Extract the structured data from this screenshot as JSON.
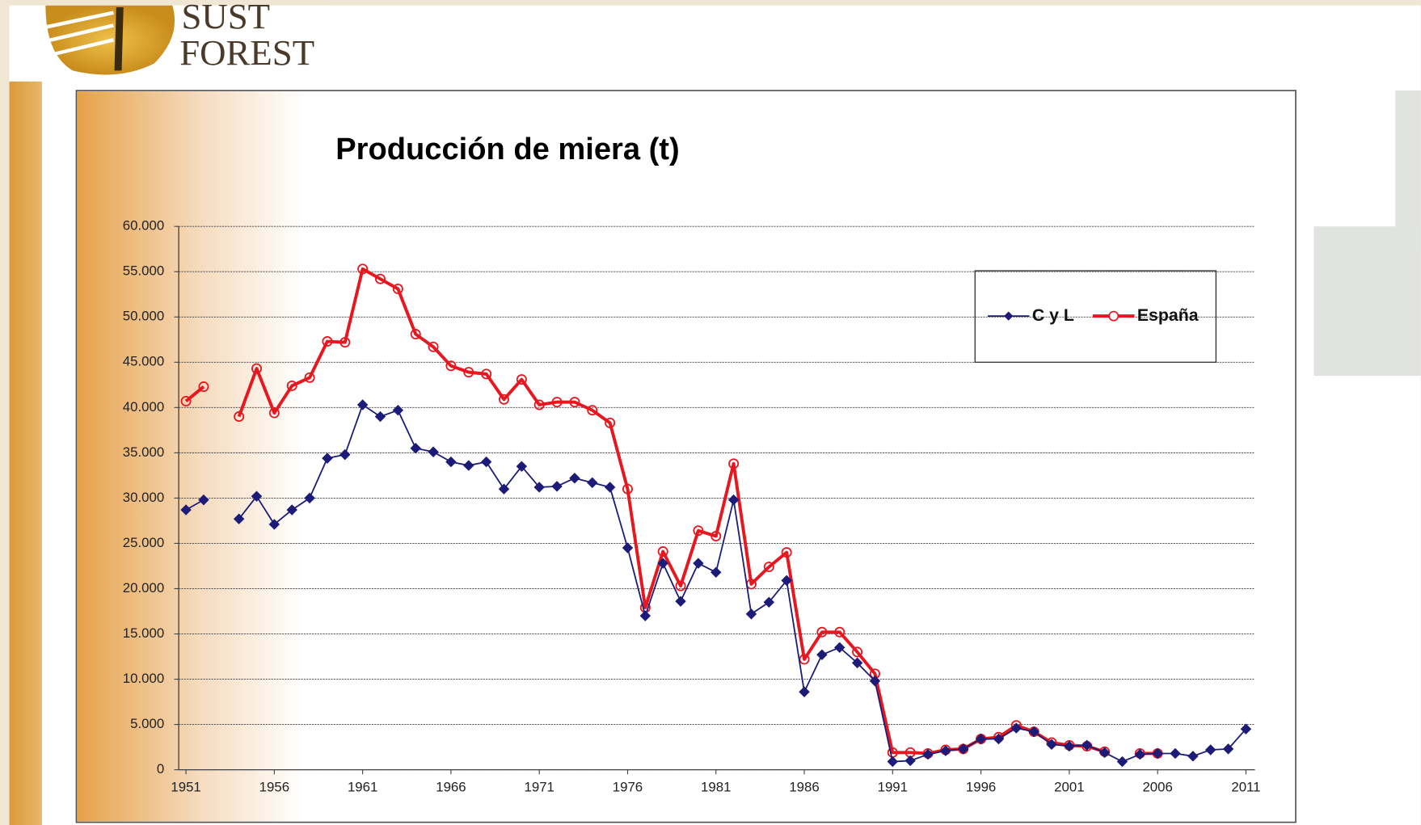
{
  "logo": {
    "line1": "SUST",
    "line2": "FOREST"
  },
  "chart_data": {
    "type": "line",
    "title": "Producción de miera (t)",
    "x": [
      1951,
      1952,
      1953,
      1954,
      1955,
      1956,
      1957,
      1958,
      1959,
      1960,
      1961,
      1962,
      1963,
      1964,
      1965,
      1966,
      1967,
      1968,
      1969,
      1970,
      1971,
      1972,
      1973,
      1974,
      1975,
      1976,
      1977,
      1978,
      1979,
      1980,
      1981,
      1982,
      1983,
      1984,
      1985,
      1986,
      1987,
      1988,
      1989,
      1990,
      1991,
      1992,
      1993,
      1994,
      1995,
      1996,
      1997,
      1998,
      1999,
      2000,
      2001,
      2002,
      2003,
      2004,
      2005,
      2006,
      2007,
      2008,
      2009,
      2010,
      2011
    ],
    "series": [
      {
        "name": "C y L",
        "color": "#1c1c78",
        "marker": "diamond",
        "values": [
          28700,
          29800,
          null,
          27700,
          30200,
          27100,
          28700,
          30000,
          34400,
          34800,
          40300,
          39000,
          39700,
          35500,
          35100,
          34000,
          33600,
          34000,
          31000,
          33500,
          31200,
          31300,
          32200,
          31700,
          31200,
          24500,
          17000,
          22800,
          18600,
          22800,
          21800,
          29800,
          17200,
          18500,
          20900,
          8600,
          12700,
          13500,
          11800,
          9800,
          900,
          1000,
          1700,
          2100,
          2300,
          3400,
          3400,
          4600,
          4200,
          2800,
          2600,
          2700,
          1900,
          900,
          1700,
          1800,
          1800,
          1500,
          2200,
          2300,
          4500
        ]
      },
      {
        "name": "España",
        "color": "#e8161e",
        "marker": "circle",
        "values": [
          40700,
          42300,
          null,
          39000,
          44300,
          39400,
          42400,
          43300,
          47300,
          47200,
          55300,
          54200,
          53100,
          48100,
          46700,
          44600,
          43900,
          43700,
          40900,
          43100,
          40300,
          40600,
          40600,
          39700,
          38300,
          31000,
          17900,
          24100,
          20300,
          26400,
          25800,
          33800,
          20500,
          22400,
          24000,
          12200,
          15200,
          15200,
          13000,
          10600,
          1900,
          1900,
          1800,
          2200,
          2300,
          3400,
          3600,
          4900,
          4200,
          3000,
          2700,
          2600,
          2000,
          null,
          1800,
          1800,
          null,
          null,
          null,
          null,
          null
        ]
      }
    ],
    "xlim": [
      1950.59,
      2011.51
    ],
    "xticks": [
      1951,
      1956,
      1961,
      1966,
      1971,
      1976,
      1981,
      1986,
      1991,
      1996,
      2001,
      2006,
      2011
    ],
    "ylim": [
      0,
      60000
    ],
    "yticks": [
      0,
      {
        "value": 5000,
        "label": "5.000"
      },
      {
        "value": 10000,
        "label": "10.000"
      },
      {
        "value": 15000,
        "label": "15.000"
      },
      {
        "value": 20000,
        "label": "20.000"
      },
      {
        "value": 25000,
        "label": "25.000"
      },
      {
        "value": 30000,
        "label": "30.000"
      },
      {
        "value": 35000,
        "label": "35.000"
      },
      {
        "value": 40000,
        "label": "40.000"
      },
      {
        "value": 45000,
        "label": "45.000"
      },
      {
        "value": 50000,
        "label": "50.000"
      },
      {
        "value": 55000,
        "label": "55.000"
      },
      {
        "value": 60000,
        "label": "60.000"
      }
    ],
    "grid": true,
    "legend": "top-right"
  }
}
